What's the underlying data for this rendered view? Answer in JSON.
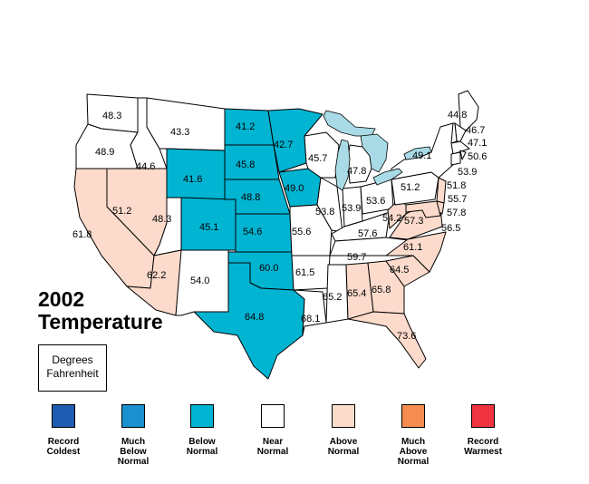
{
  "title_line1": "2002",
  "title_line2": "Temperature",
  "units_line1": "Degrees",
  "units_line2": "Fahrenheit",
  "colors": {
    "record_coldest": "#1f5bb0",
    "much_below": "#1a90d0",
    "below": "#00b4d2",
    "near": "#ffffff",
    "above": "#fddbcc",
    "much_above": "#f58c50",
    "record_warmest": "#ef3340",
    "lakes": "#a8dbe6"
  },
  "legend": [
    {
      "key": "record_coldest",
      "line1": "Record",
      "line2": "Coldest",
      "line3": ""
    },
    {
      "key": "much_below",
      "line1": "Much",
      "line2": "Below",
      "line3": "Normal"
    },
    {
      "key": "below",
      "line1": "Below",
      "line2": "Normal",
      "line3": ""
    },
    {
      "key": "near",
      "line1": "Near",
      "line2": "Normal",
      "line3": ""
    },
    {
      "key": "above",
      "line1": "Above",
      "line2": "Normal",
      "line3": ""
    },
    {
      "key": "much_above",
      "line1": "Much",
      "line2": "Above",
      "line3": "Normal"
    },
    {
      "key": "record_warmest",
      "line1": "Record",
      "line2": "Warmest",
      "line3": ""
    }
  ],
  "states": [
    {
      "id": "WA",
      "value": "48.3",
      "category": "near"
    },
    {
      "id": "OR",
      "value": "48.9",
      "category": "near"
    },
    {
      "id": "CA",
      "value": "61.8",
      "category": "above"
    },
    {
      "id": "NV",
      "value": "51.2",
      "category": "above"
    },
    {
      "id": "ID",
      "value": "44.6",
      "category": "near"
    },
    {
      "id": "MT",
      "value": "43.3",
      "category": "near"
    },
    {
      "id": "WY",
      "value": "41.6",
      "category": "below"
    },
    {
      "id": "UT",
      "value": "48.3",
      "category": "near"
    },
    {
      "id": "AZ",
      "value": "62.2",
      "category": "above"
    },
    {
      "id": "CO",
      "value": "45.1",
      "category": "below"
    },
    {
      "id": "NM",
      "value": "54.0",
      "category": "near"
    },
    {
      "id": "ND",
      "value": "41.2",
      "category": "below"
    },
    {
      "id": "SD",
      "value": "45.8",
      "category": "below"
    },
    {
      "id": "NE",
      "value": "48.8",
      "category": "below"
    },
    {
      "id": "KS",
      "value": "54.6",
      "category": "below"
    },
    {
      "id": "OK",
      "value": "60.0",
      "category": "below"
    },
    {
      "id": "TX",
      "value": "64.8",
      "category": "below"
    },
    {
      "id": "MN",
      "value": "42.7",
      "category": "below"
    },
    {
      "id": "IA",
      "value": "49.0",
      "category": "below"
    },
    {
      "id": "MO",
      "value": "55.6",
      "category": "near"
    },
    {
      "id": "AR",
      "value": "61.5",
      "category": "near"
    },
    {
      "id": "LA",
      "value": "68.1",
      "category": "near"
    },
    {
      "id": "WI",
      "value": "45.7",
      "category": "near"
    },
    {
      "id": "IL",
      "value": "53.8",
      "category": "near"
    },
    {
      "id": "MI",
      "value": "47.8",
      "category": "near"
    },
    {
      "id": "IN",
      "value": "53.9",
      "category": "near"
    },
    {
      "id": "OH",
      "value": "53.6",
      "category": "near"
    },
    {
      "id": "KY",
      "value": "57.6",
      "category": "near"
    },
    {
      "id": "TN",
      "value": "59.7",
      "category": "near"
    },
    {
      "id": "MS",
      "value": "65.2",
      "category": "near"
    },
    {
      "id": "AL",
      "value": "65.4",
      "category": "above"
    },
    {
      "id": "GA",
      "value": "65.8",
      "category": "above"
    },
    {
      "id": "FL",
      "value": "73.6",
      "category": "above"
    },
    {
      "id": "SC",
      "value": "64.5",
      "category": "above"
    },
    {
      "id": "NC",
      "value": "61.1",
      "category": "above"
    },
    {
      "id": "VA",
      "value": "57.3",
      "category": "above"
    },
    {
      "id": "WV",
      "value": "54.2",
      "category": "above"
    },
    {
      "id": "PA",
      "value": "51.2",
      "category": "near"
    },
    {
      "id": "NY",
      "value": "49.1",
      "category": "near"
    },
    {
      "id": "ME",
      "value": "44.8",
      "category": "near"
    },
    {
      "id": "NH",
      "value": "46.7",
      "category": "near"
    },
    {
      "id": "VT",
      "value": "47.1",
      "category": "near"
    },
    {
      "id": "MA",
      "value": "50.6",
      "category": "near"
    },
    {
      "id": "RI",
      "value": "53.9",
      "category": "near"
    },
    {
      "id": "CT",
      "value": "51.8",
      "category": "near"
    },
    {
      "id": "NJ",
      "value": "55.7",
      "category": "above"
    },
    {
      "id": "DE",
      "value": "57.8",
      "category": "above"
    },
    {
      "id": "MD",
      "value": "56.5",
      "category": "above"
    }
  ]
}
